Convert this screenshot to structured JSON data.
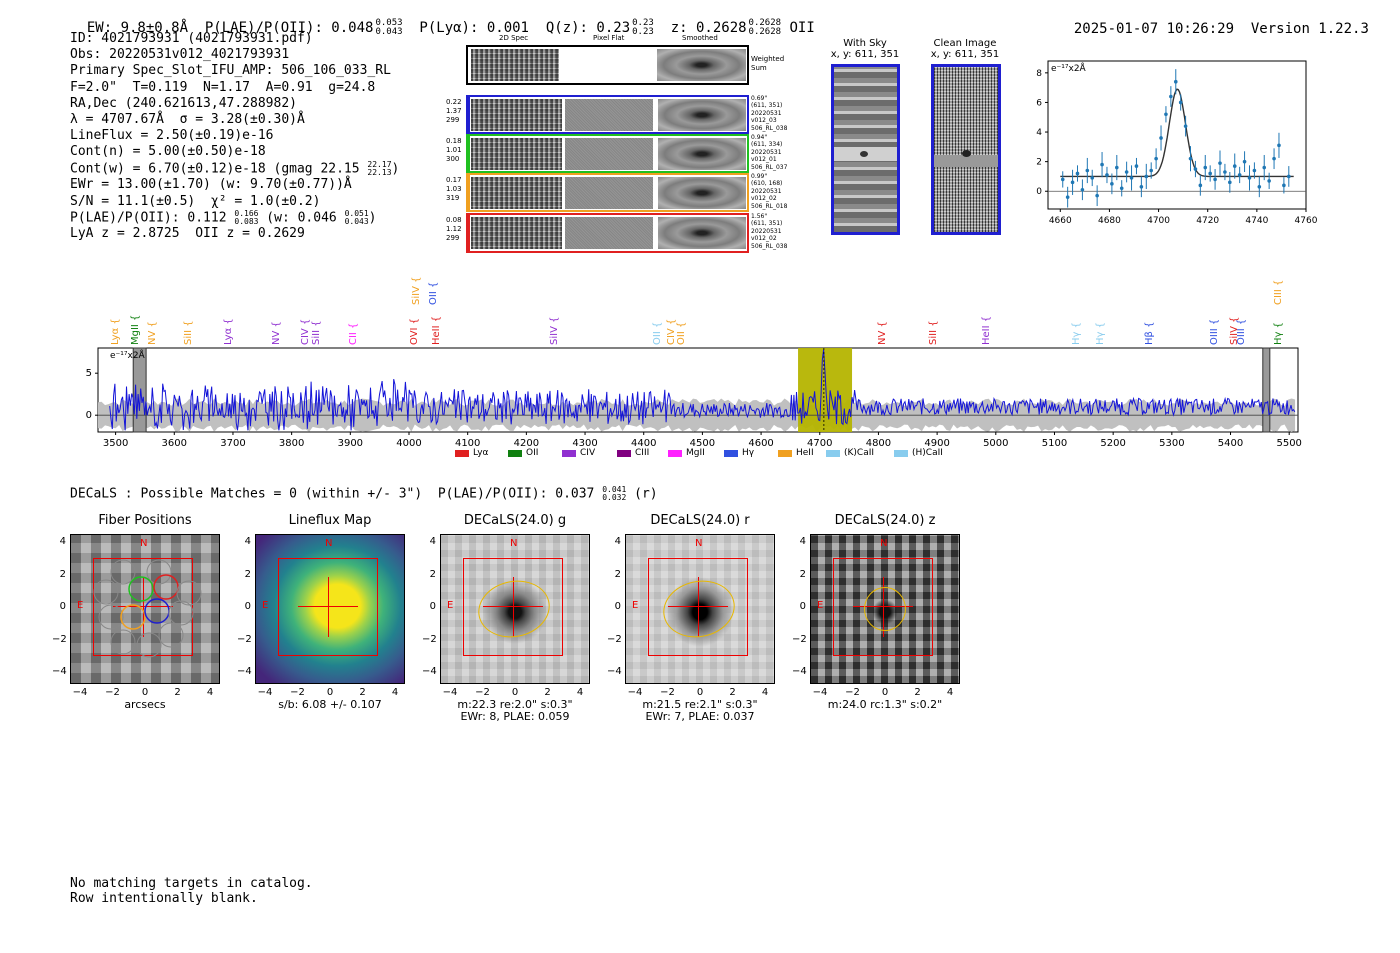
{
  "header": {
    "ew": "EW: 9.8±0.8Å",
    "plae_label": "P(LAE)/P(OII): 0.048",
    "plae_hi": "0.053",
    "plae_lo": "0.043",
    "plya": "P(Lyα): 0.001",
    "qz_label": "Q(z): 0.23",
    "qz_hi": "0.23",
    "qz_lo": "0.23",
    "z_label": "z: 0.2628",
    "z_hi": "0.2628",
    "z_lo": "0.2628",
    "z_line": "OII",
    "timestamp": "2025-01-07 10:26:29",
    "version": "Version 1.22.3"
  },
  "info": {
    "id": "ID: 4021793931 (4021793931.pdf)",
    "obs": "Obs: 20220531v012_4021793931",
    "primary": "Primary Spec_Slot_IFU_AMP: 506_106_033_RL",
    "fparams": "F=2.0\"  T=0.119  N=1.17  A=0.91  g=24.8",
    "radec": "RA,Dec (240.621613,47.288982)",
    "lambda": "λ = 4707.67Å  σ = 3.28(±0.30)Å",
    "lineflux": "LineFlux = 2.50(±0.19)e-16",
    "contn": "Cont(n) = 5.00(±0.50)e-18",
    "contw": "Cont(w) = 6.70(±0.12)e-18 (gmag 22.15",
    "contw_hi": "22.17",
    "contw_lo": "22.13",
    "contw_end": ")",
    "ewr": "EWr = 13.00(±1.70) (w: 9.70(±0.77))Å",
    "sn": "S/N = 11.1(±0.5)  χ² = 1.0(±0.2)",
    "plae": "P(LAE)/P(OII): 0.112",
    "plae_hi": "0.166",
    "plae_lo": "0.083",
    "plae_w": "(w: 0.046",
    "plae_w_hi": "0.051",
    "plae_w_lo": "0.043",
    "plae_w_end": ")",
    "lyaz": "LyA z = 2.8725  OII z = 0.2629"
  },
  "spec2d": {
    "col_2d": "2D Spec",
    "col_flat": "Pixel Flat",
    "col_smooth": "Smoothed",
    "weighted": "Weighted\nSum",
    "rows": [
      {
        "color": "#1f1fd0",
        "left": [
          "0.22",
          "1.37",
          "299"
        ],
        "right": [
          "0.69\"",
          "(611, 351)",
          "20220531",
          "v012_03",
          "506_RL_038"
        ]
      },
      {
        "color": "#20c020",
        "left": [
          "0.18",
          "1.01",
          "300"
        ],
        "right": [
          "0.94\"",
          "(611, 334)",
          "20220531",
          "v012_01",
          "506_RL_037"
        ]
      },
      {
        "color": "#f0a020",
        "left": [
          "0.17",
          "1.03",
          "319"
        ],
        "right": [
          "0.99\"",
          "(610, 168)",
          "20220531",
          "v012_02",
          "506_RL_018"
        ]
      },
      {
        "color": "#e02020",
        "left": [
          "0.08",
          "1.12",
          "299"
        ],
        "right": [
          "1.56\"",
          "(611, 351)",
          "20220531",
          "v012_02",
          "506_RL_038"
        ]
      }
    ]
  },
  "cutouts": {
    "with_sky_title": "With Sky",
    "with_sky_xy": "x, y: 611, 351",
    "clean_title": "Clean Image",
    "clean_xy": "x, y: 611, 351"
  },
  "zoom_chart": {
    "ylabel": "e⁻¹⁷x2Å",
    "xticks": [
      "4660",
      "4680",
      "4700",
      "4720",
      "4740",
      "4760"
    ],
    "yticks": [
      "0",
      "2",
      "4",
      "6",
      "8"
    ]
  },
  "full_spec": {
    "ylabel": "e⁻¹⁷x2Å",
    "xticks": [
      "3500",
      "3600",
      "3700",
      "3800",
      "3900",
      "4000",
      "4100",
      "4200",
      "4300",
      "4400",
      "4500",
      "4600",
      "4700",
      "4800",
      "4900",
      "5000",
      "5100",
      "5200",
      "5300",
      "5400",
      "5500"
    ],
    "yticks": [
      "5",
      "0"
    ],
    "lines": [
      {
        "name": "Lyα",
        "color": "#f0a020",
        "row": 1,
        "x": 3500
      },
      {
        "name": "MgII",
        "color": "#108010",
        "row": 1,
        "x": 3535
      },
      {
        "name": "NV",
        "color": "#f0a020",
        "row": 1,
        "x": 3563
      },
      {
        "name": "SiII",
        "color": "#f0a020",
        "row": 1,
        "x": 3625
      },
      {
        "name": "Lyα",
        "color": "#9030d0",
        "row": 1,
        "x": 3693
      },
      {
        "name": "NV",
        "color": "#9030d0",
        "row": 1,
        "x": 3775
      },
      {
        "name": "CIV",
        "color": "#9030d0",
        "row": 1,
        "x": 3825
      },
      {
        "name": "SiII",
        "color": "#9030d0",
        "row": 1,
        "x": 3843
      },
      {
        "name": "CII",
        "color": "#ff20ff",
        "row": 1,
        "x": 3907
      },
      {
        "name": "OVI",
        "color": "#e02020",
        "row": 1,
        "x": 4010
      },
      {
        "name": "SiIV",
        "color": "#f0a020",
        "row": 0,
        "x": 4013
      },
      {
        "name": "OII",
        "color": "#3050e0",
        "row": 0,
        "x": 4043
      },
      {
        "name": "HeII",
        "color": "#e02020",
        "row": 1,
        "x": 4048
      },
      {
        "name": "SiIV",
        "color": "#9030d0",
        "row": 1,
        "x": 4248
      },
      {
        "name": "OII",
        "color": "#88ccee",
        "row": 1,
        "x": 4425
      },
      {
        "name": "CIV",
        "color": "#f0a020",
        "row": 1,
        "x": 4448
      },
      {
        "name": "OII",
        "color": "#f0a020",
        "row": 1,
        "x": 4465
      },
      {
        "name": "NV",
        "color": "#e02020",
        "row": 1,
        "x": 4807
      },
      {
        "name": "SiII",
        "color": "#e02020",
        "row": 1,
        "x": 4895
      },
      {
        "name": "HeII",
        "color": "#9030d0",
        "row": 1,
        "x": 4985
      },
      {
        "name": "Hγ",
        "color": "#88ccee",
        "row": 1,
        "x": 5138
      },
      {
        "name": "Hγ",
        "color": "#88ccee",
        "row": 1,
        "x": 5180
      },
      {
        "name": "Hβ",
        "color": "#3050e0",
        "row": 1,
        "x": 5262
      },
      {
        "name": "OIII",
        "color": "#3050e0",
        "row": 1,
        "x": 5373
      },
      {
        "name": "SiIV",
        "color": "#e02020",
        "row": 1,
        "x": 5408
      },
      {
        "name": "OIII",
        "color": "#3050e0",
        "row": 1,
        "x": 5420
      },
      {
        "name": "Hγ",
        "color": "#108010",
        "row": 1,
        "x": 5483
      },
      {
        "name": "CIII",
        "color": "#f0a020",
        "row": 0,
        "x": 5482
      }
    ],
    "legend": [
      {
        "name": "Lyα",
        "color": "#e02020"
      },
      {
        "name": "OII",
        "color": "#108010"
      },
      {
        "name": "CIV",
        "color": "#9030d0"
      },
      {
        "name": "CIII",
        "color": "#800080"
      },
      {
        "name": "MgII",
        "color": "#ff20ff"
      },
      {
        "name": "Hγ",
        "color": "#3050e0"
      },
      {
        "name": "HeII",
        "color": "#f0a020"
      },
      {
        "name": "(K)CaII",
        "color": "#88ccee"
      },
      {
        "name": "(H)CaII",
        "color": "#88ccee"
      }
    ]
  },
  "decals": {
    "title": "DECaLS : Possible Matches = 0 (within +/- 3\")  P(LAE)/P(OII): 0.037",
    "plae_hi": "0.041",
    "plae_lo": "0.032",
    "plae_end": "(r)",
    "xticks": [
      "−4",
      "−2",
      "0",
      "2",
      "4"
    ],
    "yticks": [
      "4",
      "2",
      "0",
      "−2",
      "−4"
    ],
    "panels": [
      {
        "title": "Fiber Positions",
        "lab1": "arcsecs",
        "lab2": ""
      },
      {
        "title": "Lineflux Map",
        "lab1": "s/b: 6.08 +/- 0.107",
        "lab2": ""
      },
      {
        "title": "DECaLS(24.0) g",
        "lab1": "m:22.3  re:2.0\"  s:0.3\"",
        "lab2": "EWr: 8, PLAE: 0.059"
      },
      {
        "title": "DECaLS(24.0) r",
        "lab1": "m:21.5  re:2.1\"  s:0.3\"",
        "lab2": "EWr: 7, PLAE: 0.037"
      },
      {
        "title": "DECaLS(24.0) z",
        "lab1": "m:24.0 rc:1.3\"  s:0.2\"",
        "lab2": ""
      }
    ],
    "compass_n": "N",
    "compass_e": "E"
  },
  "footer": {
    "line1": "No matching targets in catalog.",
    "line2": "Row intentionally blank."
  },
  "chart_data": [
    {
      "type": "line",
      "title": "",
      "xlabel": "",
      "ylabel": "e⁻¹⁷x2Å",
      "xlim": [
        4655,
        4760
      ],
      "ylim": [
        -1.2,
        8.8
      ],
      "series": [
        {
          "name": "fit",
          "x": [
            4665,
            4690,
            4698,
            4702,
            4705,
            4707,
            4709,
            4712,
            4716,
            4720,
            4730,
            4755
          ],
          "y": [
            1.0,
            1.0,
            1.3,
            3.0,
            5.6,
            6.9,
            6.6,
            4.2,
            1.5,
            1.0,
            1.0,
            1.0
          ]
        },
        {
          "name": "data",
          "x": [
            4661,
            4663,
            4665,
            4667,
            4669,
            4671,
            4673,
            4675,
            4677,
            4679,
            4681,
            4683,
            4685,
            4687,
            4689,
            4691,
            4693,
            4695,
            4697,
            4699,
            4701,
            4703,
            4705,
            4707,
            4709,
            4711,
            4713,
            4715,
            4717,
            4719,
            4721,
            4723,
            4725,
            4727,
            4729,
            4731,
            4733,
            4735,
            4737,
            4739,
            4741,
            4743,
            4745,
            4747,
            4749,
            4751,
            4753
          ],
          "y": [
            0.8,
            -0.4,
            0.6,
            1.2,
            0.1,
            1.4,
            0.9,
            -0.3,
            1.8,
            1.1,
            0.5,
            1.6,
            0.2,
            1.3,
            0.9,
            1.7,
            0.3,
            1.0,
            1.4,
            2.2,
            3.6,
            5.2,
            6.4,
            7.4,
            6.0,
            4.4,
            2.2,
            1.5,
            0.4,
            1.6,
            1.2,
            0.8,
            1.9,
            1.3,
            0.6,
            1.7,
            1.1,
            2.0,
            0.9,
            1.4,
            0.3,
            1.6,
            0.7,
            2.2,
            3.1,
            0.4,
            1.0
          ]
        }
      ]
    },
    {
      "type": "line",
      "title": "",
      "xlabel": "",
      "ylabel": "e⁻¹⁷x2Å",
      "xlim": [
        3470,
        5515
      ],
      "ylim": [
        -2,
        8
      ],
      "series": [
        {
          "name": "spectrum",
          "note": "noisy continuum near 1 with emission peak ~8 at 4707Å"
        }
      ],
      "highlight": [
        4663,
        4755
      ],
      "peak": {
        "x": 4707,
        "y": 7.6
      }
    }
  ]
}
